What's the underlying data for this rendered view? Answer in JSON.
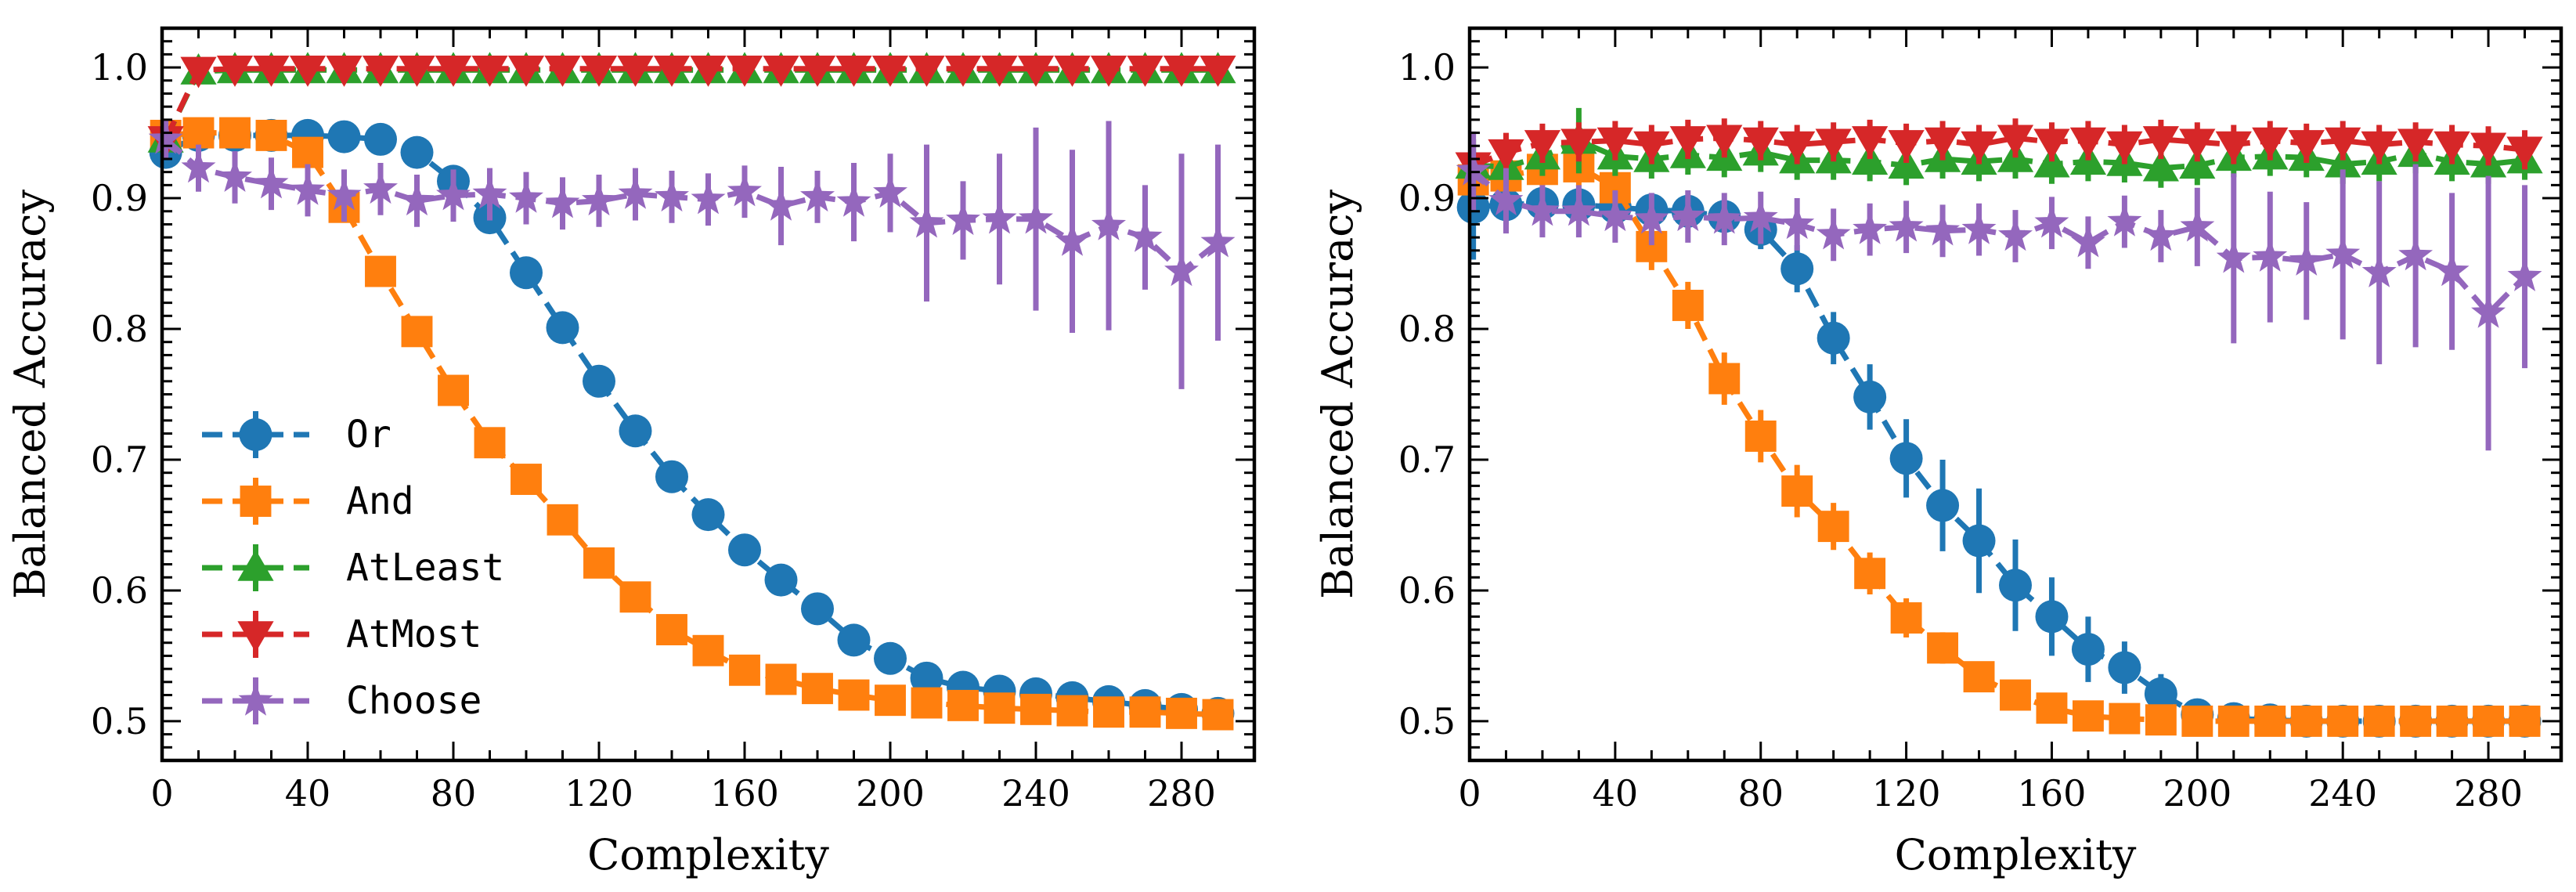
{
  "colors": {
    "Or": "#1f77b4",
    "And": "#ff7f0e",
    "AtLeast": "#2ca02c",
    "AtMost": "#d62728",
    "Choose": "#9467bd"
  },
  "markers": {
    "Or": "circle",
    "And": "square",
    "AtLeast": "triangle-up",
    "AtMost": "triangle-down",
    "Choose": "star"
  },
  "chart_data": [
    {
      "type": "line",
      "xlabel": "Complexity",
      "ylabel": "Balanced Accuracy",
      "xlim": [
        0,
        300
      ],
      "ylim": [
        0.47,
        1.03
      ],
      "xticks": [
        0,
        40,
        80,
        120,
        160,
        200,
        240,
        280
      ],
      "yticks": [
        0.5,
        0.6,
        0.7,
        0.8,
        0.9,
        1.0
      ],
      "ytick_labels": [
        "0.5",
        "0.6",
        "0.7",
        "0.8",
        "0.9",
        "1.0"
      ],
      "legend": [
        "Or",
        "And",
        "AtLeast",
        "AtMost",
        "Choose"
      ],
      "legend_position": "lower-left",
      "series": [
        {
          "name": "Or",
          "x": [
            1,
            10,
            20,
            30,
            40,
            50,
            60,
            70,
            80,
            90,
            100,
            110,
            120,
            130,
            140,
            150,
            160,
            170,
            180,
            190,
            200,
            210,
            220,
            230,
            240,
            250,
            260,
            270,
            280,
            290
          ],
          "y": [
            0.935,
            0.948,
            0.948,
            0.948,
            0.948,
            0.947,
            0.945,
            0.935,
            0.913,
            0.885,
            0.843,
            0.801,
            0.76,
            0.722,
            0.687,
            0.658,
            0.631,
            0.608,
            0.586,
            0.562,
            0.548,
            0.533,
            0.526,
            0.523,
            0.521,
            0.518,
            0.515,
            0.512,
            0.509,
            0.506
          ],
          "err": [
            0.01,
            0.005,
            0.005,
            0.005,
            0.005,
            0.005,
            0.005,
            0.005,
            0.006,
            0.006,
            0.006,
            0.006,
            0.006,
            0.006,
            0.006,
            0.006,
            0.006,
            0.006,
            0.005,
            0.005,
            0.005,
            0.004,
            0.004,
            0.004,
            0.004,
            0.003,
            0.003,
            0.003,
            0.003,
            0.003
          ]
        },
        {
          "name": "And",
          "x": [
            1,
            10,
            20,
            30,
            40,
            50,
            60,
            70,
            80,
            90,
            100,
            110,
            120,
            130,
            140,
            150,
            160,
            170,
            180,
            190,
            200,
            210,
            220,
            230,
            240,
            250,
            260,
            270,
            280,
            290
          ],
          "y": [
            0.948,
            0.95,
            0.95,
            0.948,
            0.935,
            0.893,
            0.844,
            0.798,
            0.753,
            0.713,
            0.685,
            0.654,
            0.621,
            0.595,
            0.57,
            0.554,
            0.539,
            0.532,
            0.525,
            0.52,
            0.516,
            0.514,
            0.512,
            0.51,
            0.509,
            0.508,
            0.507,
            0.507,
            0.506,
            0.505
          ],
          "err": [
            0.005,
            0.005,
            0.005,
            0.005,
            0.006,
            0.006,
            0.006,
            0.006,
            0.006,
            0.006,
            0.006,
            0.006,
            0.006,
            0.006,
            0.005,
            0.005,
            0.005,
            0.004,
            0.004,
            0.004,
            0.004,
            0.003,
            0.003,
            0.003,
            0.003,
            0.003,
            0.003,
            0.003,
            0.003,
            0.003
          ]
        },
        {
          "name": "AtLeast",
          "x": [
            1,
            10,
            20,
            30,
            40,
            50,
            60,
            70,
            80,
            90,
            100,
            110,
            120,
            130,
            140,
            150,
            160,
            170,
            180,
            190,
            200,
            210,
            220,
            230,
            240,
            250,
            260,
            270,
            280,
            290
          ],
          "y": [
            0.945,
            0.997,
            0.998,
            0.998,
            0.998,
            0.998,
            0.998,
            0.998,
            0.998,
            0.998,
            0.998,
            0.998,
            0.998,
            0.998,
            0.998,
            0.998,
            0.998,
            0.998,
            0.998,
            0.998,
            0.998,
            0.998,
            0.998,
            0.998,
            0.998,
            0.998,
            0.998,
            0.998,
            0.998,
            0.998
          ],
          "err": [
            0.005,
            0.003,
            0.002,
            0.002,
            0.002,
            0.002,
            0.002,
            0.002,
            0.002,
            0.002,
            0.002,
            0.002,
            0.002,
            0.002,
            0.002,
            0.002,
            0.002,
            0.002,
            0.002,
            0.002,
            0.002,
            0.002,
            0.002,
            0.002,
            0.002,
            0.002,
            0.002,
            0.002,
            0.002,
            0.002
          ]
        },
        {
          "name": "AtMost",
          "x": [
            1,
            10,
            20,
            30,
            40,
            50,
            60,
            70,
            80,
            90,
            100,
            110,
            120,
            130,
            140,
            150,
            160,
            170,
            180,
            190,
            200,
            210,
            220,
            230,
            240,
            250,
            260,
            270,
            280,
            290
          ],
          "y": [
            0.945,
            0.998,
            0.999,
            0.999,
            0.999,
            0.999,
            0.999,
            0.999,
            0.999,
            0.999,
            0.999,
            0.999,
            0.999,
            0.999,
            0.999,
            0.999,
            0.999,
            0.999,
            0.999,
            0.999,
            0.999,
            0.999,
            0.999,
            0.999,
            0.999,
            0.999,
            0.999,
            0.999,
            0.999,
            0.999
          ],
          "err": [
            0.005,
            0.003,
            0.002,
            0.002,
            0.002,
            0.002,
            0.002,
            0.002,
            0.002,
            0.002,
            0.002,
            0.002,
            0.002,
            0.002,
            0.002,
            0.002,
            0.002,
            0.002,
            0.002,
            0.002,
            0.002,
            0.002,
            0.002,
            0.002,
            0.002,
            0.002,
            0.002,
            0.002,
            0.002,
            0.002
          ]
        },
        {
          "name": "Choose",
          "x": [
            1,
            10,
            20,
            30,
            40,
            50,
            60,
            70,
            80,
            90,
            100,
            110,
            120,
            130,
            140,
            150,
            160,
            170,
            180,
            190,
            200,
            210,
            220,
            230,
            240,
            250,
            260,
            270,
            280,
            290
          ],
          "y": [
            0.945,
            0.923,
            0.916,
            0.911,
            0.906,
            0.902,
            0.907,
            0.898,
            0.902,
            0.903,
            0.9,
            0.896,
            0.898,
            0.903,
            0.901,
            0.899,
            0.905,
            0.894,
            0.901,
            0.897,
            0.904,
            0.881,
            0.883,
            0.884,
            0.884,
            0.867,
            0.879,
            0.87,
            0.844,
            0.866
          ],
          "err": [
            0.015,
            0.018,
            0.02,
            0.02,
            0.02,
            0.02,
            0.02,
            0.02,
            0.02,
            0.02,
            0.02,
            0.02,
            0.02,
            0.02,
            0.02,
            0.02,
            0.02,
            0.03,
            0.02,
            0.03,
            0.03,
            0.06,
            0.03,
            0.05,
            0.07,
            0.07,
            0.08,
            0.04,
            0.09,
            0.075
          ]
        }
      ]
    },
    {
      "type": "line",
      "xlabel": "Complexity",
      "ylabel": "Balanced Accuracy",
      "xlim": [
        0,
        300
      ],
      "ylim": [
        0.47,
        1.03
      ],
      "xticks": [
        0,
        40,
        80,
        120,
        160,
        200,
        240,
        280
      ],
      "yticks": [
        0.5,
        0.6,
        0.7,
        0.8,
        0.9,
        1.0
      ],
      "ytick_labels": [
        "0.5",
        "0.6",
        "0.7",
        "0.8",
        "0.9",
        "1.0"
      ],
      "legend": [],
      "series": [
        {
          "name": "Or",
          "x": [
            1,
            10,
            20,
            30,
            40,
            50,
            60,
            70,
            80,
            90,
            100,
            110,
            120,
            130,
            140,
            150,
            160,
            170,
            180,
            190,
            200,
            210,
            220,
            230,
            240,
            250,
            260,
            270,
            280,
            290
          ],
          "y": [
            0.893,
            0.895,
            0.896,
            0.895,
            0.893,
            0.891,
            0.89,
            0.886,
            0.876,
            0.846,
            0.793,
            0.748,
            0.701,
            0.665,
            0.638,
            0.604,
            0.58,
            0.555,
            0.541,
            0.521,
            0.505,
            0.502,
            0.501,
            0.5,
            0.5,
            0.5,
            0.5,
            0.5,
            0.5,
            0.5
          ],
          "err": [
            0.04,
            0.015,
            0.01,
            0.01,
            0.01,
            0.01,
            0.01,
            0.012,
            0.015,
            0.018,
            0.02,
            0.025,
            0.03,
            0.035,
            0.04,
            0.035,
            0.03,
            0.025,
            0.02,
            0.015,
            0.01,
            0.005,
            0.003,
            0.002,
            0.002,
            0.002,
            0.002,
            0.002,
            0.002,
            0.002
          ]
        },
        {
          "name": "And",
          "x": [
            1,
            10,
            20,
            30,
            40,
            50,
            60,
            70,
            80,
            90,
            100,
            110,
            120,
            130,
            140,
            150,
            160,
            170,
            180,
            190,
            200,
            210,
            220,
            230,
            240,
            250,
            260,
            270,
            280,
            290
          ],
          "y": [
            0.914,
            0.917,
            0.922,
            0.924,
            0.908,
            0.863,
            0.818,
            0.762,
            0.718,
            0.676,
            0.649,
            0.613,
            0.579,
            0.556,
            0.534,
            0.52,
            0.51,
            0.504,
            0.502,
            0.501,
            0.5,
            0.5,
            0.5,
            0.5,
            0.5,
            0.5,
            0.5,
            0.5,
            0.5,
            0.5
          ],
          "err": [
            0.01,
            0.01,
            0.012,
            0.015,
            0.018,
            0.018,
            0.018,
            0.02,
            0.02,
            0.02,
            0.018,
            0.016,
            0.015,
            0.012,
            0.01,
            0.008,
            0.005,
            0.003,
            0.002,
            0.002,
            0.002,
            0.002,
            0.002,
            0.002,
            0.002,
            0.002,
            0.002,
            0.002,
            0.002,
            0.002
          ]
        },
        {
          "name": "AtLeast",
          "x": [
            1,
            10,
            20,
            30,
            40,
            50,
            60,
            70,
            80,
            90,
            100,
            110,
            120,
            130,
            140,
            150,
            160,
            170,
            180,
            190,
            200,
            210,
            220,
            230,
            240,
            250,
            260,
            270,
            280,
            290
          ],
          "y": [
            0.925,
            0.924,
            0.932,
            0.944,
            0.932,
            0.93,
            0.933,
            0.931,
            0.935,
            0.929,
            0.929,
            0.928,
            0.925,
            0.93,
            0.928,
            0.93,
            0.926,
            0.928,
            0.927,
            0.923,
            0.925,
            0.931,
            0.932,
            0.931,
            0.926,
            0.928,
            0.934,
            0.928,
            0.926,
            0.929
          ],
          "err": [
            0.02,
            0.015,
            0.015,
            0.025,
            0.015,
            0.015,
            0.015,
            0.015,
            0.015,
            0.015,
            0.015,
            0.015,
            0.015,
            0.015,
            0.015,
            0.015,
            0.015,
            0.015,
            0.015,
            0.015,
            0.015,
            0.015,
            0.015,
            0.015,
            0.015,
            0.015,
            0.015,
            0.015,
            0.015,
            0.015
          ]
        },
        {
          "name": "AtMost",
          "x": [
            1,
            10,
            20,
            30,
            40,
            50,
            60,
            70,
            80,
            90,
            100,
            110,
            120,
            130,
            140,
            150,
            160,
            170,
            180,
            190,
            200,
            210,
            220,
            230,
            240,
            250,
            260,
            270,
            280,
            290
          ],
          "y": [
            0.925,
            0.935,
            0.942,
            0.943,
            0.944,
            0.941,
            0.945,
            0.946,
            0.944,
            0.941,
            0.943,
            0.945,
            0.942,
            0.944,
            0.941,
            0.946,
            0.943,
            0.944,
            0.941,
            0.945,
            0.943,
            0.941,
            0.944,
            0.942,
            0.944,
            0.941,
            0.943,
            0.941,
            0.94,
            0.937
          ],
          "err": [
            0.01,
            0.015,
            0.015,
            0.015,
            0.015,
            0.015,
            0.015,
            0.015,
            0.015,
            0.015,
            0.015,
            0.015,
            0.015,
            0.015,
            0.015,
            0.015,
            0.015,
            0.015,
            0.015,
            0.015,
            0.015,
            0.015,
            0.015,
            0.015,
            0.015,
            0.015,
            0.015,
            0.015,
            0.015,
            0.015
          ]
        },
        {
          "name": "Choose",
          "x": [
            1,
            10,
            20,
            30,
            40,
            50,
            60,
            70,
            80,
            90,
            100,
            110,
            120,
            130,
            140,
            150,
            160,
            170,
            180,
            190,
            200,
            210,
            220,
            230,
            240,
            250,
            260,
            270,
            280,
            290
          ],
          "y": [
            0.921,
            0.898,
            0.89,
            0.89,
            0.886,
            0.884,
            0.886,
            0.884,
            0.885,
            0.88,
            0.872,
            0.876,
            0.878,
            0.875,
            0.876,
            0.871,
            0.881,
            0.866,
            0.882,
            0.871,
            0.878,
            0.854,
            0.855,
            0.852,
            0.857,
            0.843,
            0.856,
            0.844,
            0.812,
            0.84
          ],
          "err": [
            0.03,
            0.025,
            0.02,
            0.02,
            0.02,
            0.02,
            0.02,
            0.02,
            0.02,
            0.02,
            0.02,
            0.02,
            0.02,
            0.02,
            0.02,
            0.02,
            0.02,
            0.02,
            0.02,
            0.02,
            0.03,
            0.065,
            0.05,
            0.045,
            0.065,
            0.07,
            0.07,
            0.06,
            0.105,
            0.07
          ]
        }
      ]
    }
  ]
}
